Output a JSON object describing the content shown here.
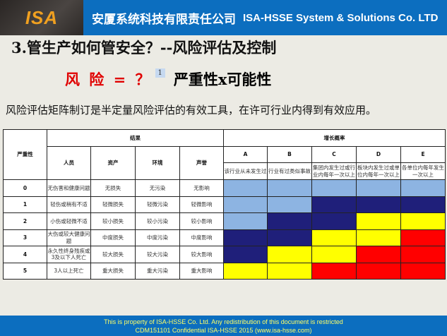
{
  "header": {
    "logo": "ISA",
    "company_cn": "安厦系统科技有限责任公司",
    "company_en": "ISA-HSSE  System & Solutions Co. LTD"
  },
  "title": "3.管生产如何管安全？--风险评估及控制",
  "formula": {
    "left": "风 险 = ？",
    "note": "1",
    "right": "严重性x可能性"
  },
  "description": "风险评估矩阵制订是半定量风险评估的有效工具，在许可行业内得到有效应用。",
  "matrix": {
    "severity_header": "严重性",
    "consequence_header": "结果",
    "probability_header": "增长概率",
    "consequence_columns": [
      "人员",
      "资产",
      "环境",
      "声誉"
    ],
    "probability_columns": [
      {
        "code": "A",
        "desc": "该行业从未发生过"
      },
      {
        "code": "B",
        "desc": "行业有过类似事故"
      },
      {
        "code": "C",
        "desc": "集团内发生过或行业内每年一次以上"
      },
      {
        "code": "D",
        "desc": "板块内发生过或单位内每年一次以上"
      },
      {
        "code": "E",
        "desc": "各单位内每年发生一次以上"
      }
    ],
    "rows": [
      {
        "level": "0",
        "cells": [
          "无伤害和健康问题",
          "无损失",
          "无污染",
          "无影响"
        ],
        "risk": [
          "L",
          "L",
          "L",
          "L",
          "L"
        ]
      },
      {
        "level": "1",
        "cells": [
          "轻伤或稍有不适",
          "轻微损失",
          "轻微污染",
          "轻微影响"
        ],
        "risk": [
          "L",
          "L",
          "M",
          "M",
          "M"
        ]
      },
      {
        "level": "2",
        "cells": [
          "小伤或轻微不适",
          "较小损失",
          "较小污染",
          "较小影响"
        ],
        "risk": [
          "L",
          "M",
          "M",
          "H",
          "H"
        ]
      },
      {
        "level": "3",
        "cells": [
          "大伤或较大健康问题",
          "中度损失",
          "中度污染",
          "中度影响"
        ],
        "risk": [
          "M",
          "M",
          "H",
          "H",
          "X"
        ]
      },
      {
        "level": "4",
        "cells": [
          "永久性终身残疾或3及以下人死亡",
          "较大损失",
          "较大污染",
          "较大影响"
        ],
        "risk": [
          "M",
          "H",
          "H",
          "X",
          "X"
        ]
      },
      {
        "level": "5",
        "cells": [
          "3人以上死亡",
          "重大损失",
          "重大污染",
          "重大影响"
        ],
        "risk": [
          "H",
          "H",
          "X",
          "X",
          "X"
        ]
      }
    ],
    "colors": {
      "L": "#8db4e2",
      "M": "#1f1f7a",
      "H": "#ffff00",
      "X": "#ff0000"
    }
  },
  "footer": {
    "line1": "This is property of ISA-HSSE Co. Ltd. Any redistribution of this document is restricted",
    "line2": "CDM151101 Confidential   ISA-HSSE 2015  (www.isa-hsse.com)"
  }
}
